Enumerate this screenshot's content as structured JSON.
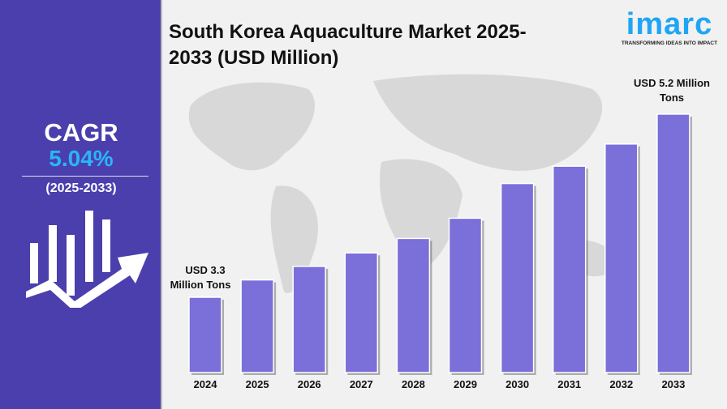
{
  "title": "South Korea Aquaculture Market 2025-2033 (USD Million)",
  "title_lines": [
    "South Korea Aquaculture Market 2025-",
    "2033 (USD Million)"
  ],
  "cagr": {
    "label": "CAGR",
    "value": "5.04%",
    "period": "(2025-2033)"
  },
  "logo": {
    "name": "imarc",
    "tagline": "TRANSFORMING IDEAS INTO IMPACT"
  },
  "colors": {
    "panel": "#4b3fae",
    "accent": "#29b6f6",
    "bar": "#7b6fd9",
    "background": "#f1f1f1"
  },
  "chart_data": {
    "type": "bar",
    "title": "South Korea Aquaculture Market 2025-2033 (USD Million)",
    "categories": [
      "2024",
      "2025",
      "2026",
      "2027",
      "2028",
      "2029",
      "2030",
      "2031",
      "2032",
      "2033"
    ],
    "values": [
      3.3,
      3.48,
      3.62,
      3.76,
      3.91,
      4.12,
      4.48,
      4.66,
      4.89,
      5.2
    ],
    "annotations": [
      {
        "category": "2024",
        "lines": [
          "USD 3.3",
          "Million Tons"
        ]
      },
      {
        "category": "2033",
        "lines": [
          "USD 5.2 Million",
          "Tons"
        ]
      }
    ],
    "grid": false
  }
}
